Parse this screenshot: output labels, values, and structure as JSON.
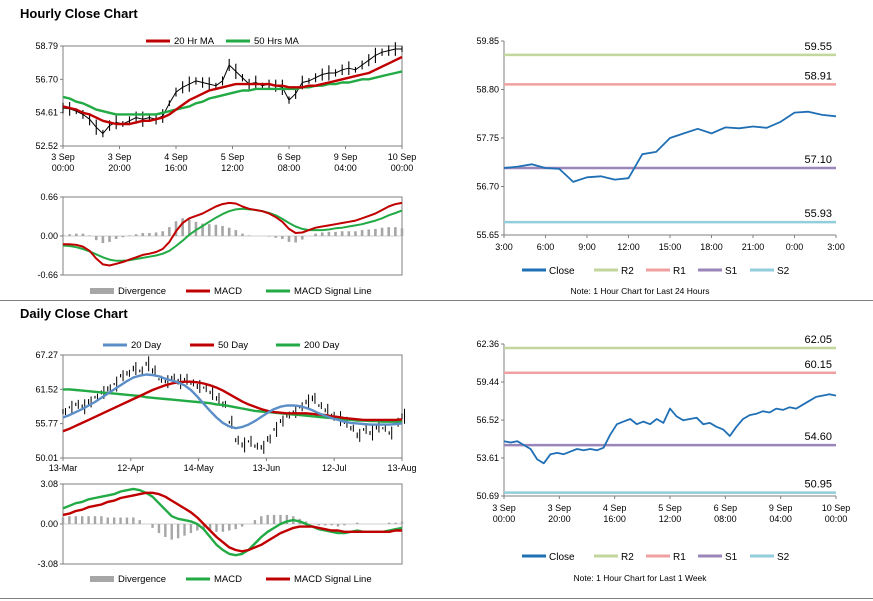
{
  "titles": {
    "hourly": "Hourly Close Chart",
    "daily": "Daily Close Chart"
  },
  "colors": {
    "close": "#1f6fb5",
    "r2": "#c3d69b",
    "r1": "#f0a0a0",
    "s1": "#9a86b8",
    "s2": "#92cddc",
    "ma_short": "#c00000",
    "ma_long": "#22aa44",
    "ma_blue": "#5b8ec7",
    "divergence": "#a6a6a6",
    "price": "#000000"
  },
  "chart_data": [
    {
      "id": "hourly_price",
      "type": "line",
      "title": "",
      "ylim": [
        52.52,
        58.79
      ],
      "yticks": [
        "58.79",
        "56.70",
        "54.61",
        "52.52"
      ],
      "ytick_values": [
        58.79,
        56.7,
        54.61,
        52.52
      ],
      "xticks": [
        "3 Sep\n00:00",
        "3 Sep\n20:00",
        "4 Sep\n16:00",
        "5 Sep\n12:00",
        "6 Sep\n08:00",
        "9 Sep\n04:00",
        "10 Sep\n00:00"
      ],
      "legend": [
        "20 Hr MA",
        "50 Hrs MA"
      ],
      "close": [
        54.9,
        54.85,
        54.7,
        54.5,
        54.2,
        53.7,
        53.3,
        53.8,
        54.0,
        53.9,
        54.1,
        54.3,
        54.2,
        54.3,
        54.2,
        54.4,
        55.2,
        55.9,
        56.2,
        56.4,
        56.6,
        56.5,
        56.4,
        56.3,
        56.6,
        57.6,
        57.2,
        56.8,
        56.4,
        56.5,
        56.3,
        56.4,
        56.3,
        56.2,
        55.4,
        55.8,
        56.5,
        56.6,
        56.8,
        57.0,
        57.1,
        57.1,
        57.3,
        57.4,
        57.3,
        57.6,
        57.9,
        58.2,
        58.4,
        58.5,
        58.6,
        58.6
      ],
      "ma20": [
        55.0,
        54.9,
        54.8,
        54.6,
        54.5,
        54.3,
        54.1,
        54.0,
        53.9,
        53.9,
        53.9,
        54.0,
        54.1,
        54.1,
        54.2,
        54.3,
        54.5,
        54.8,
        55.1,
        55.4,
        55.6,
        55.8,
        56.0,
        56.1,
        56.2,
        56.3,
        56.4,
        56.4,
        56.4,
        56.4,
        56.4,
        56.4,
        56.3,
        56.3,
        56.2,
        56.2,
        56.2,
        56.3,
        56.3,
        56.4,
        56.5,
        56.6,
        56.7,
        56.8,
        56.9,
        57.0,
        57.1,
        57.3,
        57.5,
        57.7,
        57.9,
        58.1
      ],
      "ma50": [
        55.6,
        55.5,
        55.3,
        55.2,
        55.0,
        54.8,
        54.7,
        54.6,
        54.5,
        54.5,
        54.5,
        54.5,
        54.5,
        54.5,
        54.5,
        54.6,
        54.7,
        54.8,
        54.9,
        55.0,
        55.2,
        55.3,
        55.5,
        55.6,
        55.7,
        55.8,
        55.9,
        56.0,
        56.0,
        56.1,
        56.1,
        56.1,
        56.1,
        56.1,
        56.1,
        56.1,
        56.2,
        56.2,
        56.3,
        56.3,
        56.4,
        56.4,
        56.5,
        56.5,
        56.6,
        56.7,
        56.7,
        56.8,
        56.9,
        57.0,
        57.1,
        57.2
      ]
    },
    {
      "id": "hourly_macd",
      "type": "line",
      "ylim": [
        -0.66,
        0.66
      ],
      "yticks": [
        "0.66",
        "0.00",
        "-0.66"
      ],
      "ytick_values": [
        0.66,
        0.0,
        -0.66
      ],
      "legend": [
        "Divergence",
        "MACD",
        "MACD Signal Line"
      ],
      "macd": [
        -0.14,
        -0.14,
        -0.15,
        -0.18,
        -0.25,
        -0.38,
        -0.48,
        -0.5,
        -0.47,
        -0.44,
        -0.4,
        -0.36,
        -0.32,
        -0.3,
        -0.27,
        -0.22,
        -0.1,
        0.08,
        0.22,
        0.3,
        0.34,
        0.38,
        0.44,
        0.5,
        0.54,
        0.56,
        0.55,
        0.5,
        0.46,
        0.44,
        0.42,
        0.38,
        0.32,
        0.24,
        0.12,
        0.05,
        0.06,
        0.1,
        0.14,
        0.16,
        0.18,
        0.2,
        0.22,
        0.24,
        0.26,
        0.3,
        0.34,
        0.38,
        0.44,
        0.5,
        0.54,
        0.56
      ],
      "signal": [
        -0.16,
        -0.17,
        -0.19,
        -0.22,
        -0.26,
        -0.31,
        -0.36,
        -0.4,
        -0.42,
        -0.42,
        -0.41,
        -0.39,
        -0.37,
        -0.35,
        -0.33,
        -0.3,
        -0.25,
        -0.17,
        -0.08,
        0.02,
        0.1,
        0.17,
        0.24,
        0.31,
        0.37,
        0.42,
        0.45,
        0.46,
        0.45,
        0.44,
        0.42,
        0.39,
        0.35,
        0.29,
        0.22,
        0.16,
        0.12,
        0.1,
        0.1,
        0.1,
        0.11,
        0.13,
        0.14,
        0.16,
        0.18,
        0.2,
        0.23,
        0.26,
        0.3,
        0.35,
        0.39,
        0.43
      ]
    },
    {
      "id": "hourly_pivot",
      "type": "line",
      "title": "Note: 1 Hour Chart for Last 24 Hours",
      "ylim": [
        55.65,
        59.85
      ],
      "yticks": [
        "59.85",
        "58.80",
        "57.75",
        "56.70",
        "55.65"
      ],
      "ytick_values": [
        59.85,
        58.8,
        57.75,
        56.7,
        55.65
      ],
      "xticks": [
        "3:00",
        "6:00",
        "9:00",
        "12:00",
        "15:00",
        "18:00",
        "21:00",
        "0:00",
        "3:00"
      ],
      "close": [
        57.1,
        57.13,
        57.18,
        57.1,
        57.08,
        56.8,
        56.9,
        56.92,
        56.85,
        56.88,
        57.4,
        57.45,
        57.75,
        57.85,
        57.95,
        57.85,
        57.98,
        57.96,
        58.0,
        57.97,
        58.1,
        58.3,
        58.32,
        58.25,
        58.22
      ],
      "levels": [
        {
          "name": "R2",
          "value": 59.55,
          "label": "59.55"
        },
        {
          "name": "R1",
          "value": 58.91,
          "label": "58.91"
        },
        {
          "name": "S1",
          "value": 57.1,
          "label": "57.10"
        },
        {
          "name": "S2",
          "value": 55.93,
          "label": "55.93"
        }
      ],
      "legend": [
        "Close",
        "R2",
        "R1",
        "S1",
        "S2"
      ]
    },
    {
      "id": "daily_price",
      "type": "line",
      "ylim": [
        50.01,
        67.27
      ],
      "yticks": [
        "67.27",
        "61.52",
        "55.77",
        "50.01"
      ],
      "ytick_values": [
        67.27,
        61.52,
        55.77,
        50.01
      ],
      "xticks": [
        "13-Mar",
        "12-Apr",
        "14-May",
        "13-Jun",
        "12-Jul",
        "13-Aug"
      ],
      "legend": [
        "20 Day",
        "50 Day",
        "200 Day"
      ],
      "close": [
        57.8,
        58.5,
        59.0,
        58.6,
        59.4,
        60.2,
        61.0,
        61.6,
        62.4,
        63.8,
        64.2,
        65.0,
        64.6,
        65.8,
        64.6,
        63.2,
        62.8,
        63.4,
        62.8,
        63.2,
        62.6,
        62.0,
        61.8,
        61.0,
        60.0,
        59.0,
        56.0,
        53.0,
        52.2,
        52.8,
        52.0,
        51.8,
        53.2,
        54.8,
        56.2,
        57.2,
        57.8,
        58.6,
        59.4,
        60.0,
        58.8,
        58.0,
        57.0,
        56.6,
        56.0,
        55.0,
        53.8,
        54.8,
        54.2,
        55.2,
        55.0,
        54.2,
        56.0,
        57.0
      ],
      "ma20": [
        56.8,
        57.2,
        57.7,
        58.2,
        58.8,
        59.4,
        60.1,
        60.8,
        61.5,
        62.2,
        62.9,
        63.5,
        63.8,
        64.0,
        63.9,
        63.7,
        63.3,
        63.0,
        62.7,
        62.2,
        61.4,
        60.3,
        59.1,
        57.9,
        56.8,
        55.9,
        55.3,
        55.0,
        55.2,
        55.6,
        56.2,
        56.9,
        57.6,
        58.2,
        58.6,
        58.8,
        58.8,
        58.7,
        58.4,
        58.0,
        57.5,
        57.1,
        56.7,
        56.4,
        56.1,
        55.9,
        55.8,
        55.7,
        55.6,
        55.6,
        55.6,
        55.6,
        55.7,
        55.8
      ],
      "ma50": [
        54.5,
        54.9,
        55.4,
        55.9,
        56.4,
        56.9,
        57.4,
        57.9,
        58.4,
        58.9,
        59.4,
        59.9,
        60.4,
        60.9,
        61.4,
        61.8,
        62.2,
        62.5,
        62.7,
        62.8,
        62.8,
        62.7,
        62.5,
        62.2,
        61.8,
        61.3,
        60.7,
        60.1,
        59.5,
        59.0,
        58.6,
        58.2,
        57.9,
        57.7,
        57.6,
        57.5,
        57.5,
        57.5,
        57.5,
        57.4,
        57.3,
        57.2,
        57.0,
        56.9,
        56.7,
        56.6,
        56.5,
        56.4,
        56.4,
        56.4,
        56.4,
        56.4,
        56.4,
        56.5
      ],
      "ma200": [
        61.5,
        61.5,
        61.4,
        61.3,
        61.2,
        61.1,
        61.0,
        60.9,
        60.8,
        60.7,
        60.6,
        60.5,
        60.4,
        60.2,
        60.1,
        60.0,
        59.9,
        59.8,
        59.7,
        59.6,
        59.5,
        59.4,
        59.3,
        59.2,
        59.0,
        58.9,
        58.7,
        58.5,
        58.3,
        58.1,
        57.9,
        57.8,
        57.7,
        57.6,
        57.5,
        57.4,
        57.3,
        57.2,
        57.1,
        57.0,
        56.9,
        56.8,
        56.7,
        56.6,
        56.5,
        56.4,
        56.3,
        56.3,
        56.2,
        56.2,
        56.1,
        56.1,
        56.1,
        56.1
      ]
    },
    {
      "id": "daily_macd",
      "type": "line",
      "ylim": [
        -3.08,
        3.08
      ],
      "yticks": [
        "3.08",
        "0.00",
        "-3.08"
      ],
      "ytick_values": [
        3.08,
        0.0,
        -3.08
      ],
      "legend": [
        "Divergence",
        "MACD",
        "MACD Signal Line"
      ],
      "macd": [
        1.2,
        1.4,
        1.6,
        1.7,
        1.9,
        2.0,
        2.1,
        2.2,
        2.3,
        2.5,
        2.6,
        2.7,
        2.6,
        2.4,
        2.1,
        1.6,
        1.1,
        0.6,
        0.4,
        0.3,
        0.2,
        0.0,
        -0.4,
        -1.0,
        -1.6,
        -2.0,
        -2.3,
        -2.4,
        -2.3,
        -2.0,
        -1.5,
        -1.0,
        -0.6,
        -0.3,
        0.0,
        0.2,
        0.3,
        0.2,
        0.0,
        -0.2,
        -0.4,
        -0.5,
        -0.6,
        -0.7,
        -0.7,
        -0.6,
        -0.5,
        -0.6,
        -0.6,
        -0.6,
        -0.6,
        -0.5,
        -0.4,
        -0.3
      ],
      "signal": [
        0.7,
        0.8,
        1.0,
        1.1,
        1.3,
        1.4,
        1.5,
        1.7,
        1.8,
        2.0,
        2.1,
        2.2,
        2.3,
        2.4,
        2.4,
        2.3,
        2.1,
        1.8,
        1.5,
        1.2,
        0.9,
        0.5,
        0.0,
        -0.5,
        -1.0,
        -1.4,
        -1.8,
        -2.0,
        -2.1,
        -2.0,
        -1.8,
        -1.6,
        -1.3,
        -1.0,
        -0.7,
        -0.5,
        -0.3,
        -0.2,
        -0.2,
        -0.2,
        -0.3,
        -0.4,
        -0.5,
        -0.5,
        -0.6,
        -0.6,
        -0.6,
        -0.6,
        -0.6,
        -0.6,
        -0.6,
        -0.6,
        -0.5,
        -0.5
      ]
    },
    {
      "id": "daily_pivot",
      "type": "line",
      "title": "Note: 1 Hour Chart for Last 1 Week",
      "ylim": [
        50.69,
        62.36
      ],
      "yticks": [
        "62.36",
        "59.44",
        "56.52",
        "53.61",
        "50.69"
      ],
      "ytick_values": [
        62.36,
        59.44,
        56.52,
        53.61,
        50.69
      ],
      "xticks": [
        "3 Sep\n00:00",
        "3 Sep\n20:00",
        "4 Sep\n16:00",
        "5 Sep\n12:00",
        "6 Sep\n08:00",
        "9 Sep\n04:00",
        "10 Sep\n00:00"
      ],
      "close": [
        54.9,
        54.8,
        54.9,
        54.6,
        54.3,
        53.5,
        53.2,
        53.9,
        54.0,
        53.9,
        54.1,
        54.3,
        54.2,
        54.3,
        54.2,
        54.4,
        55.4,
        56.2,
        56.4,
        56.6,
        56.2,
        56.4,
        56.2,
        56.6,
        56.3,
        57.4,
        56.8,
        56.5,
        56.6,
        56.7,
        56.2,
        56.3,
        56.0,
        55.8,
        55.3,
        56.0,
        56.6,
        56.9,
        57.0,
        57.2,
        57.1,
        57.4,
        57.3,
        57.5,
        57.4,
        57.7,
        58.0,
        58.3,
        58.4,
        58.5,
        58.4
      ],
      "levels": [
        {
          "name": "R2",
          "value": 62.05,
          "label": "62.05"
        },
        {
          "name": "R1",
          "value": 60.15,
          "label": "60.15"
        },
        {
          "name": "S1",
          "value": 54.6,
          "label": "54.60"
        },
        {
          "name": "S2",
          "value": 50.95,
          "label": "50.95"
        }
      ],
      "legend": [
        "Close",
        "R2",
        "R1",
        "S1",
        "S2"
      ]
    }
  ]
}
